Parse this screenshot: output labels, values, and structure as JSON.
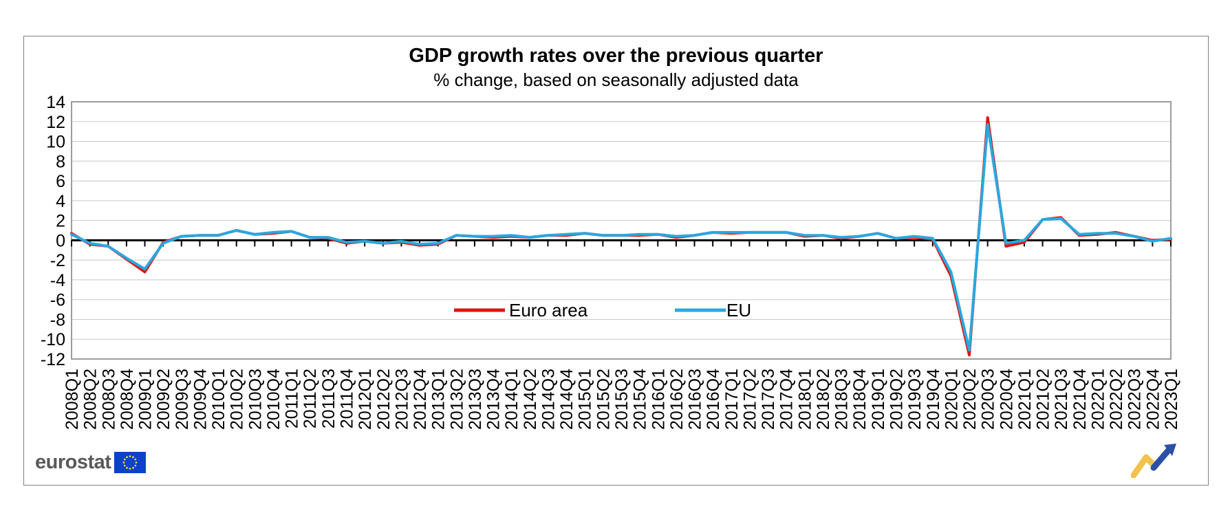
{
  "header": {
    "title": "GDP growth rates over the previous quarter",
    "subtitle": "% change, based on seasonally adjusted data"
  },
  "chart_data": {
    "type": "line",
    "title": "GDP growth rates over the previous quarter",
    "subtitle": "% change, based on seasonally adjusted data",
    "xlabel": "",
    "ylabel": "",
    "ylim": [
      -12,
      14
    ],
    "ytick_step": 2,
    "grid": true,
    "grid_color": "#c8c8c8",
    "axis_color": "#000000",
    "plot_border_color": "#9c9c9c",
    "legend_position": "inside-center",
    "categories": [
      "2008Q1",
      "2008Q2",
      "2008Q3",
      "2008Q4",
      "2009Q1",
      "2009Q2",
      "2009Q3",
      "2009Q4",
      "2010Q1",
      "2010Q2",
      "2010Q3",
      "2010Q4",
      "2011Q1",
      "2011Q2",
      "2011Q3",
      "2011Q4",
      "2012Q1",
      "2012Q2",
      "2012Q3",
      "2012Q4",
      "2013Q1",
      "2013Q2",
      "2013Q3",
      "2013Q4",
      "2014Q1",
      "2014Q2",
      "2014Q3",
      "2014Q4",
      "2015Q1",
      "2015Q2",
      "2015Q3",
      "2015Q4",
      "2016Q1",
      "2016Q2",
      "2016Q3",
      "2016Q4",
      "2017Q1",
      "2017Q2",
      "2017Q3",
      "2017Q4",
      "2018Q1",
      "2018Q2",
      "2018Q3",
      "2018Q4",
      "2019Q1",
      "2019Q2",
      "2019Q3",
      "2019Q4",
      "2020Q1",
      "2020Q2",
      "2020Q3",
      "2020Q4",
      "2021Q1",
      "2021Q2",
      "2021Q3",
      "2021Q4",
      "2022Q1",
      "2022Q2",
      "2022Q3",
      "2022Q4",
      "2023Q1"
    ],
    "series": [
      {
        "name": "Euro area",
        "color": "#e3120b",
        "values": [
          0.7,
          -0.4,
          -0.6,
          -1.9,
          -3.2,
          -0.2,
          0.4,
          0.5,
          0.5,
          1.0,
          0.6,
          0.7,
          0.9,
          0.3,
          0.2,
          -0.3,
          -0.1,
          -0.3,
          -0.2,
          -0.5,
          -0.4,
          0.5,
          0.4,
          0.3,
          0.4,
          0.3,
          0.5,
          0.5,
          0.7,
          0.5,
          0.5,
          0.5,
          0.6,
          0.3,
          0.5,
          0.8,
          0.7,
          0.8,
          0.8,
          0.8,
          0.4,
          0.5,
          0.2,
          0.4,
          0.7,
          0.2,
          0.3,
          0.1,
          -3.6,
          -11.6,
          12.4,
          -0.6,
          -0.2,
          2.1,
          2.3,
          0.5,
          0.6,
          0.8,
          0.4,
          0.0,
          0.1
        ]
      },
      {
        "name": "EU",
        "color": "#29a8e0",
        "values": [
          0.6,
          -0.3,
          -0.6,
          -1.8,
          -2.9,
          -0.3,
          0.4,
          0.5,
          0.5,
          1.0,
          0.6,
          0.8,
          0.9,
          0.3,
          0.3,
          -0.2,
          -0.1,
          -0.3,
          -0.1,
          -0.4,
          -0.3,
          0.5,
          0.4,
          0.4,
          0.5,
          0.3,
          0.5,
          0.6,
          0.7,
          0.5,
          0.5,
          0.6,
          0.6,
          0.4,
          0.5,
          0.8,
          0.8,
          0.8,
          0.8,
          0.8,
          0.5,
          0.5,
          0.3,
          0.4,
          0.7,
          0.2,
          0.4,
          0.2,
          -3.2,
          -11.1,
          11.7,
          -0.3,
          0.0,
          2.1,
          2.2,
          0.6,
          0.7,
          0.7,
          0.4,
          -0.1,
          0.2
        ]
      }
    ]
  },
  "footer": {
    "brand": "eurostat",
    "flag_color": "#0b41cd",
    "star_color": "#ffd617",
    "logo_yellow": "#f2c24e",
    "logo_blue": "#2b50a5"
  }
}
